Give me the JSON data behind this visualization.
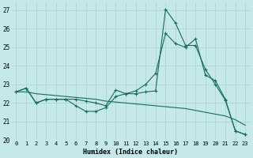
{
  "xlabel": "Humidex (Indice chaleur)",
  "xlim": [
    -0.5,
    23.5
  ],
  "ylim": [
    20,
    27.4
  ],
  "yticks": [
    20,
    21,
    22,
    23,
    24,
    25,
    26,
    27
  ],
  "xticks": [
    0,
    1,
    2,
    3,
    4,
    5,
    6,
    7,
    8,
    9,
    10,
    11,
    12,
    13,
    14,
    15,
    16,
    17,
    18,
    19,
    20,
    21,
    22,
    23
  ],
  "bg_color": "#c5e8e8",
  "grid_color": "#aed4d4",
  "line_color": "#1a6b5a",
  "line1_y": [
    22.6,
    22.8,
    22.0,
    22.2,
    22.2,
    22.2,
    21.85,
    21.55,
    21.55,
    21.75,
    22.35,
    22.5,
    22.65,
    23.0,
    23.6,
    25.75,
    25.2,
    25.0,
    25.45,
    23.5,
    23.2,
    22.2,
    20.5,
    20.3
  ],
  "line2_y": [
    22.6,
    22.8,
    22.0,
    22.2,
    22.2,
    22.2,
    22.2,
    22.1,
    22.0,
    21.85,
    22.7,
    22.5,
    22.5,
    22.6,
    22.65,
    27.05,
    26.3,
    25.1,
    25.1,
    23.8,
    23.0,
    22.15,
    20.5,
    20.3
  ],
  "line3_y": [
    22.6,
    22.6,
    22.5,
    22.45,
    22.4,
    22.35,
    22.3,
    22.25,
    22.2,
    22.1,
    22.05,
    22.0,
    21.95,
    21.9,
    21.85,
    21.8,
    21.75,
    21.7,
    21.6,
    21.5,
    21.4,
    21.3,
    21.1,
    20.8
  ],
  "figsize": [
    3.2,
    2.0
  ],
  "dpi": 100
}
